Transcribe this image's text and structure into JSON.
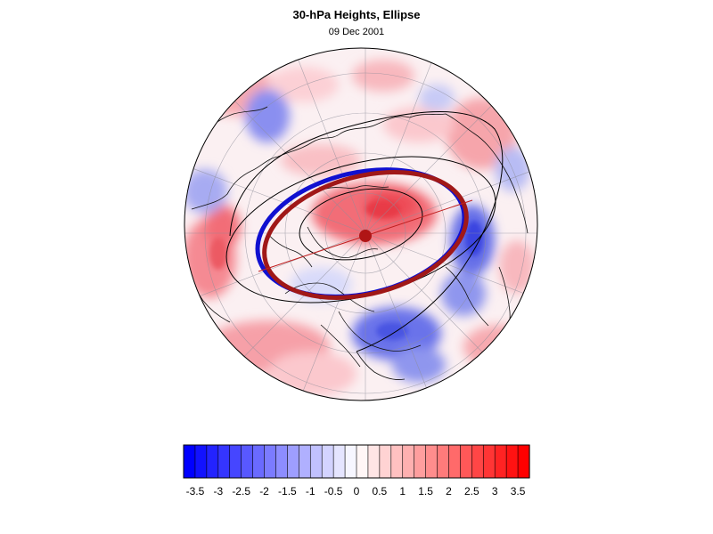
{
  "title": "30-hPa Heights, Ellipse",
  "date": "09 Dec 2001",
  "map": {
    "projection": "polar-stereographic",
    "hemisphere": "northern",
    "field": "30-hPa height anomaly",
    "features": [
      "coastlines",
      "graticule",
      "ellipse-fit-blue",
      "ellipse-fit-red",
      "pole-center-marker"
    ]
  },
  "colorbar": {
    "min": -3.75,
    "max": 3.75,
    "step": 0.25,
    "colors": {
      "negative": "#0000ff",
      "neutral": "#ffffff",
      "positive": "#ff0000"
    },
    "tick_labels": [
      "-3.5",
      "-3",
      "-2.5",
      "-2",
      "-1.5",
      "-1",
      "-0.5",
      "0",
      "0.5",
      "1",
      "1.5",
      "2",
      "2.5",
      "3",
      "3.5"
    ]
  },
  "colors": {
    "ellipse_blue": "#1010d0",
    "ellipse_red": "#a01818",
    "contour": "#000000"
  }
}
